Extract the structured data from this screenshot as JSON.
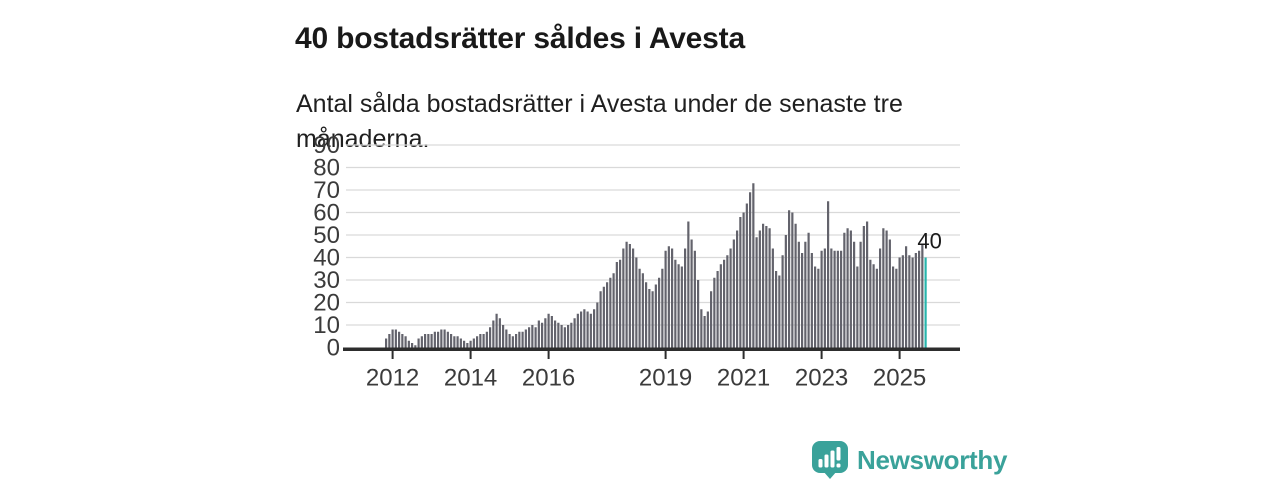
{
  "header": {
    "title": "40 bostadsrätter såldes i Avesta",
    "subtitle": "Antal sålda bostadsrätter i Avesta under de senaste tre månaderna."
  },
  "footer": {
    "brand": "Newsworthy",
    "logo_icon": "bar-chart-speech-bubble-icon"
  },
  "colors": {
    "bar": "#63636c",
    "highlight": "#27b5ac",
    "grid": "#d9d9d9",
    "axis": "#2d2d2d",
    "axis_label": "#3b3b3b",
    "annotation": "#1a1a1a",
    "brand": "#3aa29a"
  },
  "chart_data": {
    "type": "bar",
    "title": "40 bostadsrätter såldes i Avesta",
    "subtitle": "Antal sålda bostadsrätter i Avesta under de senaste tre månaderna.",
    "x_unit": "month",
    "start_month": "2011-11",
    "end_month": "2025-09",
    "values": [
      4,
      6,
      8,
      8,
      7,
      6,
      5,
      3,
      2,
      1,
      4,
      5,
      6,
      6,
      6,
      7,
      7,
      8,
      8,
      7,
      6,
      5,
      5,
      4,
      3,
      2,
      3,
      4,
      5,
      6,
      6,
      7,
      9,
      12,
      15,
      13,
      10,
      8,
      6,
      5,
      6,
      7,
      7,
      8,
      9,
      10,
      9,
      12,
      11,
      13,
      15,
      14,
      12,
      11,
      10,
      9,
      10,
      11,
      13,
      15,
      16,
      17,
      16,
      15,
      17,
      20,
      25,
      27,
      29,
      31,
      33,
      38,
      39,
      44,
      47,
      46,
      44,
      40,
      35,
      33,
      29,
      26,
      25,
      28,
      31,
      35,
      43,
      45,
      44,
      39,
      37,
      36,
      44,
      56,
      48,
      43,
      30,
      17,
      14,
      16,
      25,
      31,
      34,
      37,
      39,
      41,
      44,
      48,
      52,
      58,
      60,
      64,
      69,
      73,
      49,
      52,
      55,
      54,
      53,
      44,
      34,
      32,
      41,
      50,
      61,
      60,
      55,
      47,
      42,
      47,
      51,
      42,
      36,
      35,
      43,
      44,
      65,
      44,
      43,
      43,
      43,
      51,
      53,
      52,
      47,
      36,
      47,
      54,
      56,
      39,
      37,
      35,
      44,
      53,
      52,
      48,
      36,
      35,
      40,
      41,
      45,
      41,
      40,
      42,
      43,
      46,
      40
    ],
    "highlight_last_bar": true,
    "last_value": 40,
    "annotation": {
      "text": "40",
      "month_index": 166
    },
    "yticks": [
      0,
      10,
      20,
      30,
      40,
      50,
      60,
      70,
      80,
      90
    ],
    "ylim": [
      0,
      90
    ],
    "xticks": [
      {
        "label": "2012",
        "month_index": 2
      },
      {
        "label": "2014",
        "month_index": 26
      },
      {
        "label": "2016",
        "month_index": 50
      },
      {
        "label": "2019",
        "month_index": 86
      },
      {
        "label": "2021",
        "month_index": 110
      },
      {
        "label": "2023",
        "month_index": 134
      },
      {
        "label": "2025",
        "month_index": 158
      }
    ],
    "grid": true,
    "legend": false
  }
}
